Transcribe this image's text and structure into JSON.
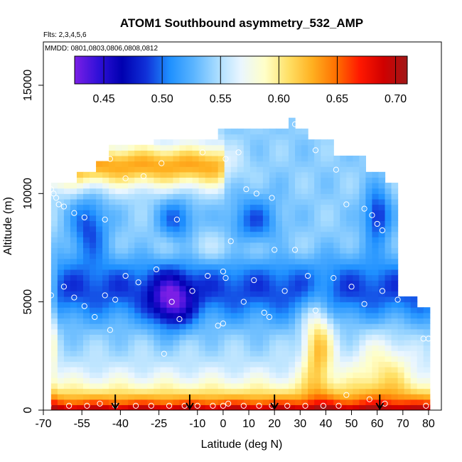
{
  "chart_data": {
    "type": "heatmap",
    "title": "ATOM1 Southbound asymmetry_532_AMP",
    "subtitle_flights": "Flts: 2,3,4,5,6",
    "subtitle_dates": "MMDD: 0801,0803,0806,0808,0812",
    "xlabel": "Latitude (deg N)",
    "ylabel": "Altitude (m)",
    "xlim": [
      -70,
      85
    ],
    "ylim": [
      0,
      17000
    ],
    "x_ticks": [
      -70,
      -55,
      -40,
      -25,
      -10,
      0,
      10,
      20,
      30,
      40,
      50,
      60,
      70,
      80
    ],
    "x_tick_labels": [
      "-70",
      "-55",
      "-40",
      "-25",
      "-10",
      "0",
      "10",
      "20",
      "30",
      "40",
      "50",
      "60",
      "70",
      "80"
    ],
    "y_ticks": [
      0,
      5000,
      10000,
      15000
    ],
    "y_tick_labels": [
      "0",
      "5000",
      "10000",
      "15000"
    ],
    "colorbar": {
      "range": [
        0.425,
        0.71
      ],
      "ticks": [
        0.45,
        0.5,
        0.55,
        0.6,
        0.65,
        0.7
      ],
      "tick_labels": [
        "0.45",
        "0.50",
        "0.55",
        "0.60",
        "0.65",
        "0.70"
      ],
      "colors": [
        "#7b1fe6",
        "#3010d8",
        "#0000b0",
        "#1030d8",
        "#1e90ff",
        "#5ab4ff",
        "#a8dcff",
        "#eaf6ff",
        "#ffffc8",
        "#ffe066",
        "#ffb020",
        "#ff7000",
        "#ff1800",
        "#d00000",
        "#a01818"
      ]
    },
    "flight_markers_lat": [
      -42,
      -13,
      20,
      61
    ],
    "observations": [
      {
        "lat": -67,
        "alt": 10200
      },
      {
        "lat": -66,
        "alt": 10000
      },
      {
        "lat": -65,
        "alt": 9800
      },
      {
        "lat": -64,
        "alt": 9500
      },
      {
        "lat": -62,
        "alt": 9400
      },
      {
        "lat": -58,
        "alt": 9100
      },
      {
        "lat": -54,
        "alt": 8900
      },
      {
        "lat": -46,
        "alt": 8800
      },
      {
        "lat": -44,
        "alt": 11600
      },
      {
        "lat": -38,
        "alt": 10700
      },
      {
        "lat": -31,
        "alt": 10800
      },
      {
        "lat": -24,
        "alt": 11400
      },
      {
        "lat": -18,
        "alt": 8800
      },
      {
        "lat": -8,
        "alt": 11900
      },
      {
        "lat": 1,
        "alt": 11600
      },
      {
        "lat": 6,
        "alt": 11900
      },
      {
        "lat": 9,
        "alt": 10200
      },
      {
        "lat": 13,
        "alt": 10000
      },
      {
        "lat": 19,
        "alt": 9800
      },
      {
        "lat": 28,
        "alt": 13200
      },
      {
        "lat": 36,
        "alt": 12000
      },
      {
        "lat": 44,
        "alt": 11100
      },
      {
        "lat": 48,
        "alt": 9500
      },
      {
        "lat": 55,
        "alt": 9300
      },
      {
        "lat": 58,
        "alt": 9000
      },
      {
        "lat": 60,
        "alt": 8600
      },
      {
        "lat": 62,
        "alt": 8300
      },
      {
        "lat": -67,
        "alt": 5300
      },
      {
        "lat": -62,
        "alt": 5700
      },
      {
        "lat": -58,
        "alt": 5200
      },
      {
        "lat": -54,
        "alt": 4800
      },
      {
        "lat": -50,
        "alt": 4300
      },
      {
        "lat": -46,
        "alt": 5300
      },
      {
        "lat": -44,
        "alt": 3700
      },
      {
        "lat": -42,
        "alt": 5100
      },
      {
        "lat": -38,
        "alt": 6200
      },
      {
        "lat": -33,
        "alt": 5900
      },
      {
        "lat": -26,
        "alt": 6500
      },
      {
        "lat": -20,
        "alt": 5000
      },
      {
        "lat": -17,
        "alt": 4200
      },
      {
        "lat": -12,
        "alt": 5500
      },
      {
        "lat": -6,
        "alt": 6200
      },
      {
        "lat": -2,
        "alt": 3900
      },
      {
        "lat": 0,
        "alt": 6400
      },
      {
        "lat": 0,
        "alt": 4000
      },
      {
        "lat": 1,
        "alt": 6100
      },
      {
        "lat": 3,
        "alt": 7800
      },
      {
        "lat": 8,
        "alt": 5000
      },
      {
        "lat": 12,
        "alt": 6000
      },
      {
        "lat": 16,
        "alt": 4500
      },
      {
        "lat": 18,
        "alt": 4300
      },
      {
        "lat": 20,
        "alt": 7400
      },
      {
        "lat": 24,
        "alt": 5500
      },
      {
        "lat": 28,
        "alt": 7400
      },
      {
        "lat": 33,
        "alt": 6200
      },
      {
        "lat": 36,
        "alt": 4600
      },
      {
        "lat": 43,
        "alt": 6100
      },
      {
        "lat": 50,
        "alt": 5700
      },
      {
        "lat": 55,
        "alt": 4900
      },
      {
        "lat": 62,
        "alt": 5500
      },
      {
        "lat": 68,
        "alt": 5100
      },
      {
        "lat": 78,
        "alt": 3300
      },
      {
        "lat": 80,
        "alt": 3300
      },
      {
        "lat": -23,
        "alt": 2600
      },
      {
        "lat": 48,
        "alt": 700
      },
      {
        "lat": 57,
        "alt": 500
      },
      {
        "lat": -68,
        "alt": 200
      },
      {
        "lat": -60,
        "alt": 200
      },
      {
        "lat": -53,
        "alt": 200
      },
      {
        "lat": -48,
        "alt": 300
      },
      {
        "lat": -42,
        "alt": 200
      },
      {
        "lat": -34,
        "alt": 200
      },
      {
        "lat": -28,
        "alt": 200
      },
      {
        "lat": -21,
        "alt": 200
      },
      {
        "lat": -15,
        "alt": 200
      },
      {
        "lat": -10,
        "alt": 200
      },
      {
        "lat": -4,
        "alt": 200
      },
      {
        "lat": 0,
        "alt": 200
      },
      {
        "lat": 2,
        "alt": 300
      },
      {
        "lat": 8,
        "alt": 200
      },
      {
        "lat": 14,
        "alt": 200
      },
      {
        "lat": 19,
        "alt": 200
      },
      {
        "lat": 25,
        "alt": 200
      },
      {
        "lat": 32,
        "alt": 200
      },
      {
        "lat": 39,
        "alt": 200
      },
      {
        "lat": 45,
        "alt": 200
      },
      {
        "lat": 63,
        "alt": 300
      },
      {
        "lat": 79,
        "alt": 200
      }
    ]
  }
}
